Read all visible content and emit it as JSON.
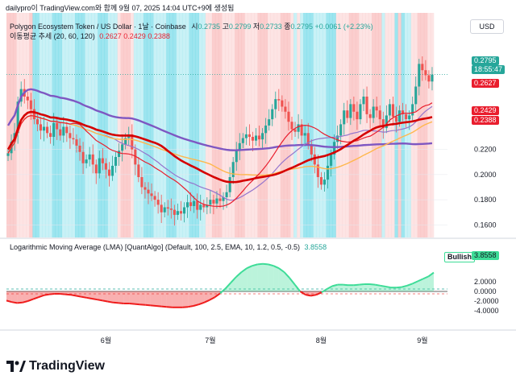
{
  "header": {
    "attribution": "dailypro이 TradingView.com와 함께 9월 07, 2025 14:04 UTC+9에 생성됨"
  },
  "main_legend": {
    "title": "Polygon Ecosystem Token / US Dollar · 1날 · Coinbase",
    "open_label": "시",
    "open": "0.2735",
    "high_label": "고",
    "high": "0.2799",
    "low_label": "저",
    "low": "0.2733",
    "close_label": "종",
    "close": "0.2795",
    "change": "+0.0061 (+2.23%)"
  },
  "ma_legend": {
    "name": "이동평균 추세 (20, 60, 120)",
    "v1": "0.2627",
    "v2": "0.2429",
    "v3": "0.2388"
  },
  "lma_legend": {
    "name": "Logarithmic Moving Average (LMA) [QuantAlgo] (Default, 100, 2.5, EMA, 10, 1.2, 0.5, -0.5)",
    "value": "3.8558"
  },
  "currency_button": "USD",
  "price_tags": {
    "last_price": "0.2795",
    "countdown": "18:55:47",
    "ma20": "0.2627",
    "ma60": "0.2429",
    "ma120": "0.2388"
  },
  "lma_tags": {
    "label": "Bullish",
    "value": "3.8558"
  },
  "footer": {
    "brand": "TradingView"
  },
  "colors": {
    "up": "#26a69a",
    "down": "#ef5350",
    "ma20": "#e91e2e",
    "ma60": "#ffb74d",
    "ma120": "#d50000",
    "ma_slow": "#7e57c2",
    "bull_bg": "#4dd0e1",
    "bear_bg": "#f8a5a5"
  },
  "chart_data": [
    {
      "type": "candlestick",
      "symbol": "Polygon Ecosystem Token / US Dollar",
      "ylim": [
        0.15,
        0.31
      ],
      "yticks": [
        "0.1600",
        "0.1800",
        "0.2000",
        "0.2200"
      ],
      "xticks": [
        "6월",
        "7월",
        "8월",
        "9월"
      ],
      "last_close": 0.2795,
      "series": [
        {
          "name": "MA20",
          "last": 0.2627
        },
        {
          "name": "MA60",
          "last": 0.2429
        },
        {
          "name": "MA120",
          "last": 0.2388
        }
      ],
      "closes": [
        0.217,
        0.226,
        0.233,
        0.258,
        0.268,
        0.262,
        0.259,
        0.252,
        0.244,
        0.24,
        0.235,
        0.238,
        0.233,
        0.23,
        0.241,
        0.236,
        0.231,
        0.238,
        0.233,
        0.229,
        0.228,
        0.223,
        0.218,
        0.209,
        0.212,
        0.216,
        0.208,
        0.201,
        0.213,
        0.209,
        0.204,
        0.199,
        0.207,
        0.214,
        0.219,
        0.224,
        0.229,
        0.232,
        0.22,
        0.208,
        0.198,
        0.19,
        0.188,
        0.185,
        0.183,
        0.18,
        0.176,
        0.17,
        0.174,
        0.173,
        0.172,
        0.168,
        0.171,
        0.169,
        0.174,
        0.178,
        0.175,
        0.179,
        0.172,
        0.176,
        0.174,
        0.176,
        0.18,
        0.177,
        0.181,
        0.179,
        0.182,
        0.186,
        0.198,
        0.21,
        0.22,
        0.225,
        0.229,
        0.232,
        0.23,
        0.227,
        0.231,
        0.228,
        0.233,
        0.239,
        0.244,
        0.252,
        0.26,
        0.259,
        0.254,
        0.25,
        0.242,
        0.236,
        0.234,
        0.24,
        0.231,
        0.233,
        0.224,
        0.216,
        0.208,
        0.198,
        0.192,
        0.196,
        0.207,
        0.216,
        0.226,
        0.231,
        0.24,
        0.251,
        0.245,
        0.256,
        0.25,
        0.244,
        0.256,
        0.262,
        0.248,
        0.245,
        0.254,
        0.251,
        0.244,
        0.237,
        0.247,
        0.256,
        0.246,
        0.242,
        0.251,
        0.248,
        0.244,
        0.247,
        0.256,
        0.27,
        0.288,
        0.283,
        0.279,
        0.274,
        0.2795
      ]
    },
    {
      "type": "area",
      "title": "Logarithmic Moving Average (LMA)",
      "ylim": [
        -5,
        7
      ],
      "yticks": [
        "2.0000",
        "0.0000",
        "-2.0000",
        "-4.0000"
      ],
      "last": 3.8558,
      "values": [
        -1.9,
        -2.2,
        -2.4,
        -2.3,
        -2.0,
        -1.6,
        -1.2,
        -0.8,
        -0.6,
        -0.5,
        -0.5,
        -0.6,
        -0.7,
        -0.9,
        -1.1,
        -1.3,
        -1.5,
        -1.7,
        -1.9,
        -2.1,
        -2.3,
        -2.4,
        -2.5,
        -2.5,
        -2.6,
        -2.7,
        -2.8,
        -2.9,
        -3.0,
        -3.1,
        -3.2,
        -3.3,
        -3.3,
        -3.3,
        -3.2,
        -3.0,
        -2.7,
        -2.3,
        -1.8,
        -1.2,
        -0.4,
        0.6,
        1.8,
        3.0,
        4.0,
        4.8,
        5.3,
        5.6,
        5.7,
        5.6,
        5.3,
        4.8,
        4.0,
        2.8,
        1.4,
        0.0,
        -0.7,
        -0.9,
        -0.7,
        -0.2,
        0.5,
        1.1,
        1.4,
        1.4,
        1.3,
        1.3,
        1.4,
        1.5,
        1.5,
        1.4,
        1.2,
        1.0,
        0.8,
        0.8,
        0.9,
        1.2,
        1.6,
        2.1,
        2.6,
        3.1,
        3.9
      ]
    }
  ]
}
